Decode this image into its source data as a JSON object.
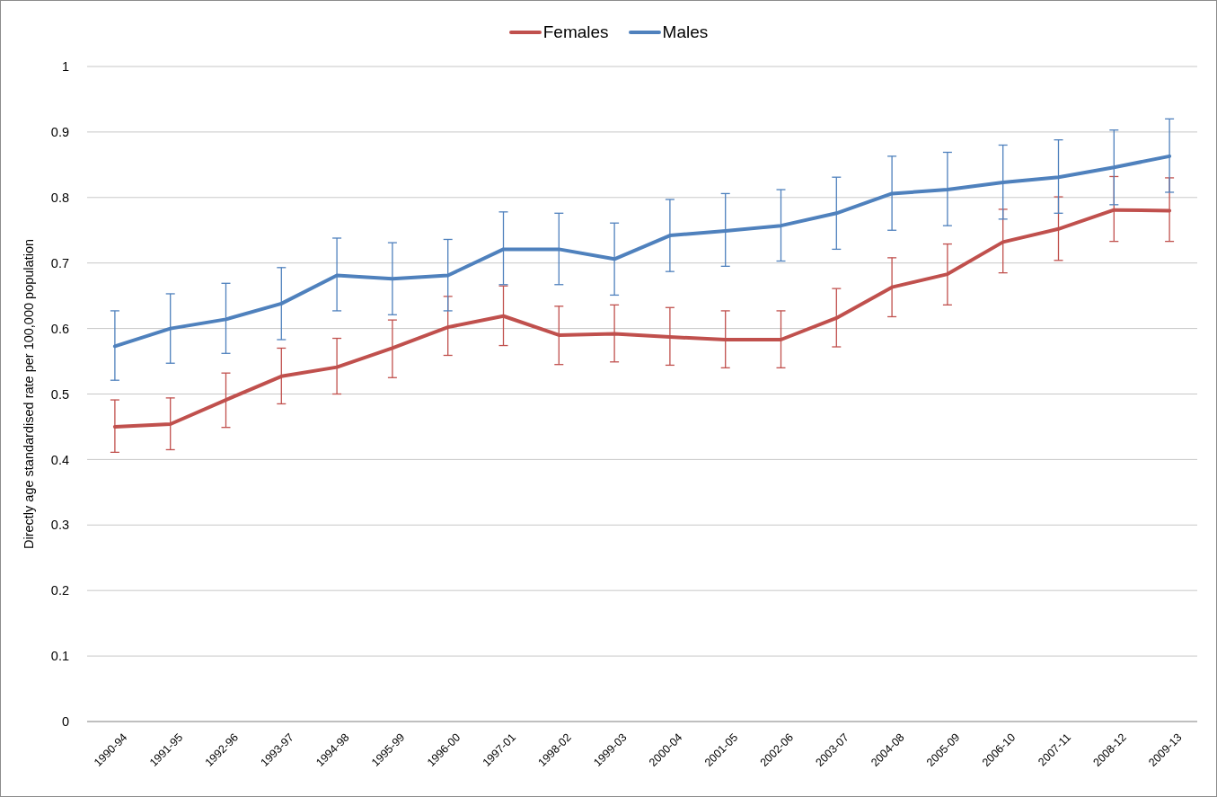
{
  "chart_data": {
    "type": "line",
    "ylabel": "Directly age standardised rate per 100,000 population",
    "categories": [
      "1990-94",
      "1991-95",
      "1992-96",
      "1993-97",
      "1994-98",
      "1995-99",
      "1996-00",
      "1997-01",
      "1998-02",
      "1999-03",
      "2000-04",
      "2001-05",
      "2002-06",
      "2003-07",
      "2004-08",
      "2005-09",
      "2006-10",
      "2007-11",
      "2008-12",
      "2009-13"
    ],
    "series": [
      {
        "name": "Females",
        "color": "#c0504d",
        "values": [
          0.45,
          0.454,
          0.491,
          0.527,
          0.541,
          0.57,
          0.602,
          0.619,
          0.59,
          0.592,
          0.587,
          0.583,
          0.583,
          0.616,
          0.663,
          0.683,
          0.732,
          0.752,
          0.781,
          0.78
        ],
        "errors": [
          [
            0.411,
            0.491
          ],
          [
            0.415,
            0.494
          ],
          [
            0.449,
            0.532
          ],
          [
            0.485,
            0.57
          ],
          [
            0.5,
            0.585
          ],
          [
            0.525,
            0.613
          ],
          [
            0.559,
            0.649
          ],
          [
            0.574,
            0.665
          ],
          [
            0.545,
            0.634
          ],
          [
            0.549,
            0.636
          ],
          [
            0.544,
            0.632
          ],
          [
            0.54,
            0.627
          ],
          [
            0.54,
            0.627
          ],
          [
            0.572,
            0.661
          ],
          [
            0.618,
            0.708
          ],
          [
            0.636,
            0.729
          ],
          [
            0.685,
            0.782
          ],
          [
            0.704,
            0.801
          ],
          [
            0.733,
            0.832
          ],
          [
            0.733,
            0.83
          ]
        ]
      },
      {
        "name": "Males",
        "color": "#4f81bd",
        "values": [
          0.573,
          0.6,
          0.614,
          0.638,
          0.681,
          0.676,
          0.681,
          0.721,
          0.721,
          0.706,
          0.742,
          0.749,
          0.757,
          0.776,
          0.806,
          0.812,
          0.823,
          0.831,
          0.846,
          0.863
        ],
        "errors": [
          [
            0.521,
            0.627
          ],
          [
            0.547,
            0.653
          ],
          [
            0.562,
            0.669
          ],
          [
            0.583,
            0.693
          ],
          [
            0.627,
            0.738
          ],
          [
            0.621,
            0.731
          ],
          [
            0.627,
            0.736
          ],
          [
            0.667,
            0.778
          ],
          [
            0.667,
            0.776
          ],
          [
            0.651,
            0.761
          ],
          [
            0.687,
            0.797
          ],
          [
            0.695,
            0.806
          ],
          [
            0.703,
            0.812
          ],
          [
            0.721,
            0.831
          ],
          [
            0.75,
            0.863
          ],
          [
            0.757,
            0.869
          ],
          [
            0.767,
            0.88
          ],
          [
            0.776,
            0.888
          ],
          [
            0.789,
            0.903
          ],
          [
            0.808,
            0.92
          ]
        ]
      }
    ],
    "ylim": [
      0,
      1
    ],
    "yticks": [
      0,
      0.1,
      0.2,
      0.3,
      0.4,
      0.5,
      0.6,
      0.7,
      0.8,
      0.9,
      1
    ],
    "grid": "y",
    "legend": "top",
    "marker": "none",
    "line_style": "solid"
  }
}
